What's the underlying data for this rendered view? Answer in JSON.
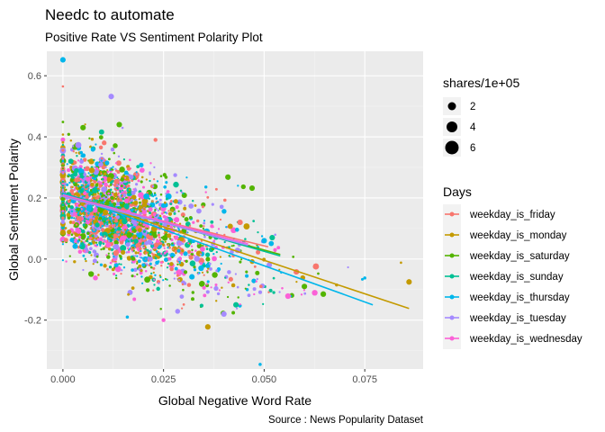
{
  "chart_data": {
    "type": "scatter",
    "title": "Needc to automate",
    "subtitle": "Positive Rate VS Sentiment Polarity Plot",
    "xlabel": "Global Negative Word Rate",
    "ylabel": "Global Sentiment Polarity",
    "caption": "Source : News Popularity Dataset",
    "xlim": [
      -0.004,
      0.0895
    ],
    "ylim": [
      -0.36,
      0.68
    ],
    "x_ticks": [
      0.0,
      0.025,
      0.05,
      0.075
    ],
    "x_tick_labels": [
      "0.000",
      "0.025",
      "0.050",
      "0.075"
    ],
    "y_ticks": [
      -0.2,
      0.0,
      0.2,
      0.4,
      0.6
    ],
    "y_tick_labels": [
      "-0.2",
      "0.0",
      "0.2",
      "0.4",
      "0.6"
    ],
    "size_legend": {
      "title": "shares/1e+05",
      "breaks": [
        2,
        4,
        6
      ],
      "labels": [
        "2",
        "4",
        "6"
      ]
    },
    "color_legend": {
      "title": "Days",
      "series": [
        {
          "name": "weekday_is_friday",
          "color": "#F8766D"
        },
        {
          "name": "weekday_is_monday",
          "color": "#C49A00"
        },
        {
          "name": "weekday_is_saturday",
          "color": "#53B400"
        },
        {
          "name": "weekday_is_sunday",
          "color": "#00C094"
        },
        {
          "name": "weekday_is_thursday",
          "color": "#00B6EB"
        },
        {
          "name": "weekday_is_tuesday",
          "color": "#A58AFF"
        },
        {
          "name": "weekday_is_wednesday",
          "color": "#FB61D7"
        }
      ]
    },
    "trend_lines": [
      {
        "name": "weekday_is_friday",
        "x": [
          0.0,
          0.051
        ],
        "y": [
          0.205,
          0.04
        ]
      },
      {
        "name": "weekday_is_monday",
        "x": [
          0.0,
          0.086
        ],
        "y": [
          0.215,
          -0.162
        ]
      },
      {
        "name": "weekday_is_saturday",
        "x": [
          0.0,
          0.054
        ],
        "y": [
          0.21,
          0.015
        ]
      },
      {
        "name": "weekday_is_sunday",
        "x": [
          0.0,
          0.054
        ],
        "y": [
          0.215,
          0.01
        ]
      },
      {
        "name": "weekday_is_thursday",
        "x": [
          0.0,
          0.077
        ],
        "y": [
          0.215,
          -0.15
        ]
      },
      {
        "name": "weekday_is_tuesday",
        "x": [
          0.0,
          0.046
        ],
        "y": [
          0.205,
          0.045
        ]
      },
      {
        "name": "weekday_is_wednesday",
        "x": [
          0.0,
          0.046
        ],
        "y": [
          0.21,
          0.05
        ]
      }
    ],
    "highlight_points": [
      {
        "x": 0.0,
        "y": 0.652,
        "size": 1.4,
        "series": "weekday_is_thursday"
      },
      {
        "x": 0.0,
        "y": 0.565,
        "size": 0.6,
        "series": "weekday_is_friday"
      },
      {
        "x": 0.012,
        "y": 0.532,
        "size": 1.4,
        "series": "weekday_is_tuesday"
      },
      {
        "x": 0.086,
        "y": -0.075,
        "size": 1.4,
        "series": "weekday_is_monday"
      },
      {
        "x": 0.084,
        "y": -0.012,
        "size": 0.6,
        "series": "weekday_is_monday"
      },
      {
        "x": 0.075,
        "y": -0.062,
        "size": 0.8,
        "series": "weekday_is_thursday"
      },
      {
        "x": 0.06,
        "y": -0.09,
        "size": 1.4,
        "series": "weekday_is_saturday"
      },
      {
        "x": 0.058,
        "y": -0.042,
        "size": 1.4,
        "series": "weekday_is_friday"
      },
      {
        "x": 0.068,
        "y": -0.085,
        "size": 0.8,
        "series": "weekday_is_monday"
      },
      {
        "x": 0.049,
        "y": -0.345,
        "size": 0.8,
        "series": "weekday_is_thursday"
      },
      {
        "x": 0.036,
        "y": -0.222,
        "size": 1.4,
        "series": "weekday_is_monday"
      },
      {
        "x": 0.014,
        "y": 0.44,
        "size": 1.4,
        "series": "weekday_is_saturday"
      },
      {
        "x": 0.041,
        "y": 0.268,
        "size": 1.4,
        "series": "weekday_is_saturday"
      },
      {
        "x": 0.047,
        "y": 0.232,
        "size": 1.4,
        "series": "weekday_is_saturday"
      },
      {
        "x": 0.005,
        "y": 0.43,
        "size": 1.4,
        "series": "weekday_is_saturday"
      },
      {
        "x": 0.04,
        "y": -0.18,
        "size": 1.4,
        "series": "weekday_is_tuesday"
      },
      {
        "x": 0.043,
        "y": -0.15,
        "size": 1.4,
        "series": "weekday_is_sunday"
      },
      {
        "x": 0.025,
        "y": -0.2,
        "size": 1.0,
        "series": "weekday_is_wednesday"
      },
      {
        "x": 0.016,
        "y": -0.19,
        "size": 0.8,
        "series": "weekday_is_thursday"
      },
      {
        "x": 0.023,
        "y": 0.39,
        "size": 1.0,
        "series": "weekday_is_friday"
      },
      {
        "x": 0.05,
        "y": 0.06,
        "size": 1.4,
        "series": "weekday_is_thursday"
      },
      {
        "x": 0.052,
        "y": 0.07,
        "size": 1.4,
        "series": "weekday_is_sunday"
      },
      {
        "x": 0.044,
        "y": 0.12,
        "size": 1.4,
        "series": "weekday_is_friday"
      }
    ],
    "cloud": {
      "n_points": 2600,
      "x_shape": 2.2,
      "x_scale": 0.0075,
      "x_zero_fraction": 0.12,
      "y_intercept": 0.21,
      "y_slope": -4.9,
      "y_sd": 0.085,
      "size_range": [
        0.5,
        1.6
      ],
      "seed": 7
    }
  }
}
